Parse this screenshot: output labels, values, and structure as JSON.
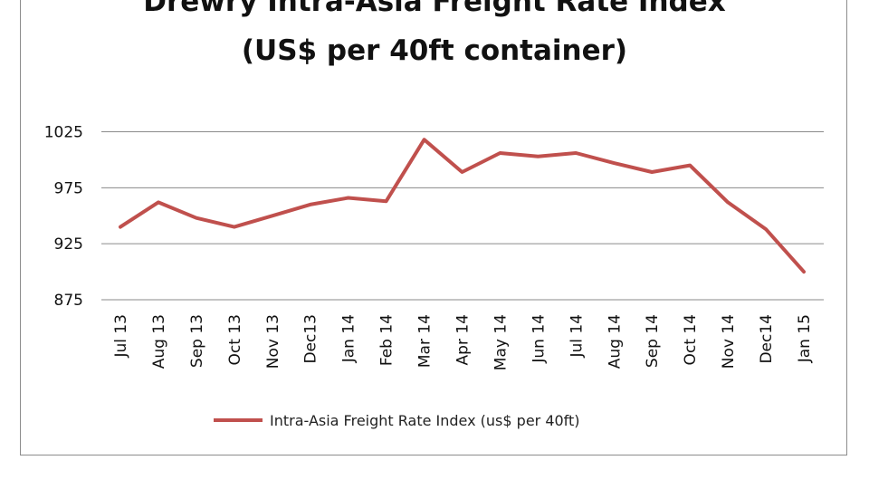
{
  "chart_data": {
    "type": "line",
    "title": "Drewry Intra-Asia Freight Rate Index",
    "subtitle": "(US$ per 40ft container)",
    "categories": [
      "Jul 13",
      "Aug 13",
      "Sep 13",
      "Oct 13",
      "Nov 13",
      "Dec13",
      "Jan 14",
      "Feb 14",
      "Mar 14",
      "Apr 14",
      "May 14",
      "Jun 14",
      "Jul 14",
      "Aug 14",
      "Sep 14",
      "Oct 14",
      "Nov 14",
      "Dec14",
      "Jan 15"
    ],
    "series": [
      {
        "name": "Intra-Asia Freight Rate Index (us$ per 40ft)",
        "color": "#c0504d",
        "values": [
          940,
          962,
          948,
          940,
          950,
          960,
          966,
          963,
          1018,
          989,
          1006,
          1003,
          1006,
          997,
          989,
          995,
          962,
          938,
          900
        ]
      }
    ],
    "yticks": [
      875,
      925,
      975,
      1025
    ],
    "ylim": [
      875,
      1050
    ],
    "grid": true,
    "legend_position": "bottom"
  }
}
